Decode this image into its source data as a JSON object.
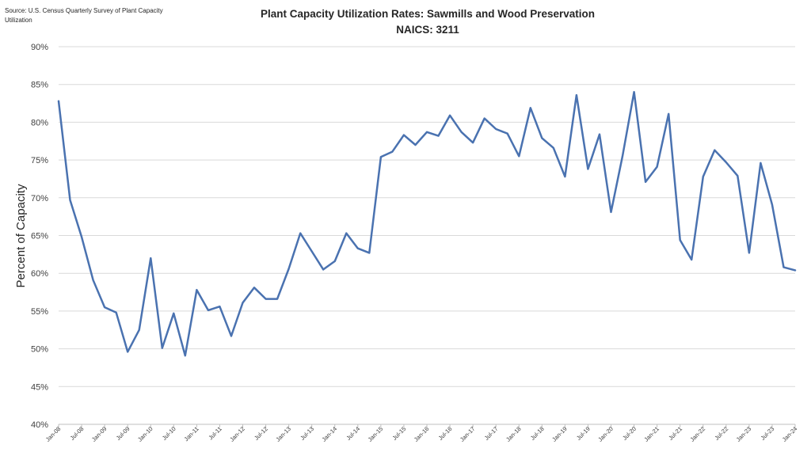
{
  "chart_data": {
    "type": "line",
    "title": "Plant Capacity Utilization Rates: Sawmills and Wood Preservation",
    "subtitle": "NAICS: 3211",
    "source": "Source: U.S. Census Quarterly Survey of Plant Capacity Utilization",
    "ylabel": "Percent of Capacity",
    "xlabel": "",
    "ylim": [
      40,
      90
    ],
    "y_ticks": [
      "40%",
      "45%",
      "50%",
      "55%",
      "60%",
      "65%",
      "70%",
      "75%",
      "80%",
      "85%",
      "90%"
    ],
    "x_ticks": [
      "Jan-08",
      "Jul-08",
      "Jan-09",
      "Jul-09",
      "Jan-10",
      "Jul-10",
      "Jan-11",
      "Jul-11",
      "Jan-12",
      "Jul-12",
      "Jan-13",
      "Jul-13",
      "Jan-14",
      "Jul-14",
      "Jan-15",
      "Jul-15",
      "Jan-16",
      "Jul-16",
      "Jan-17",
      "Jul-17",
      "Jan-18",
      "Jul-18",
      "Jan-19",
      "Jul-19",
      "Jan-20",
      "Jul-20",
      "Jan-21",
      "Jul-21",
      "Jan-22",
      "Jul-22",
      "Jan-23",
      "Jul-23",
      "Jan-24"
    ],
    "grid": true,
    "line_color": "#4a72b0",
    "series": [
      {
        "name": "",
        "values": [
          82.8,
          69.7,
          64.8,
          59.1,
          55.5,
          54.8,
          49.6,
          52.5,
          62.0,
          50.1,
          54.7,
          49.1,
          57.8,
          55.1,
          55.6,
          51.7,
          56.1,
          58.1,
          56.6,
          56.6,
          60.6,
          65.3,
          62.9,
          60.5,
          61.6,
          65.3,
          63.3,
          62.7,
          75.4,
          76.1,
          78.3,
          77.0,
          78.7,
          78.2,
          80.9,
          78.7,
          77.3,
          80.5,
          79.1,
          78.5,
          75.5,
          81.9,
          77.9,
          76.6,
          72.8,
          83.6,
          73.8,
          78.4,
          68.1,
          75.5,
          84.0,
          72.1,
          74.1,
          81.1,
          64.4,
          61.8,
          72.8,
          76.3,
          74.7,
          72.9,
          62.7,
          74.6,
          69.1,
          60.8,
          60.4
        ]
      }
    ]
  }
}
